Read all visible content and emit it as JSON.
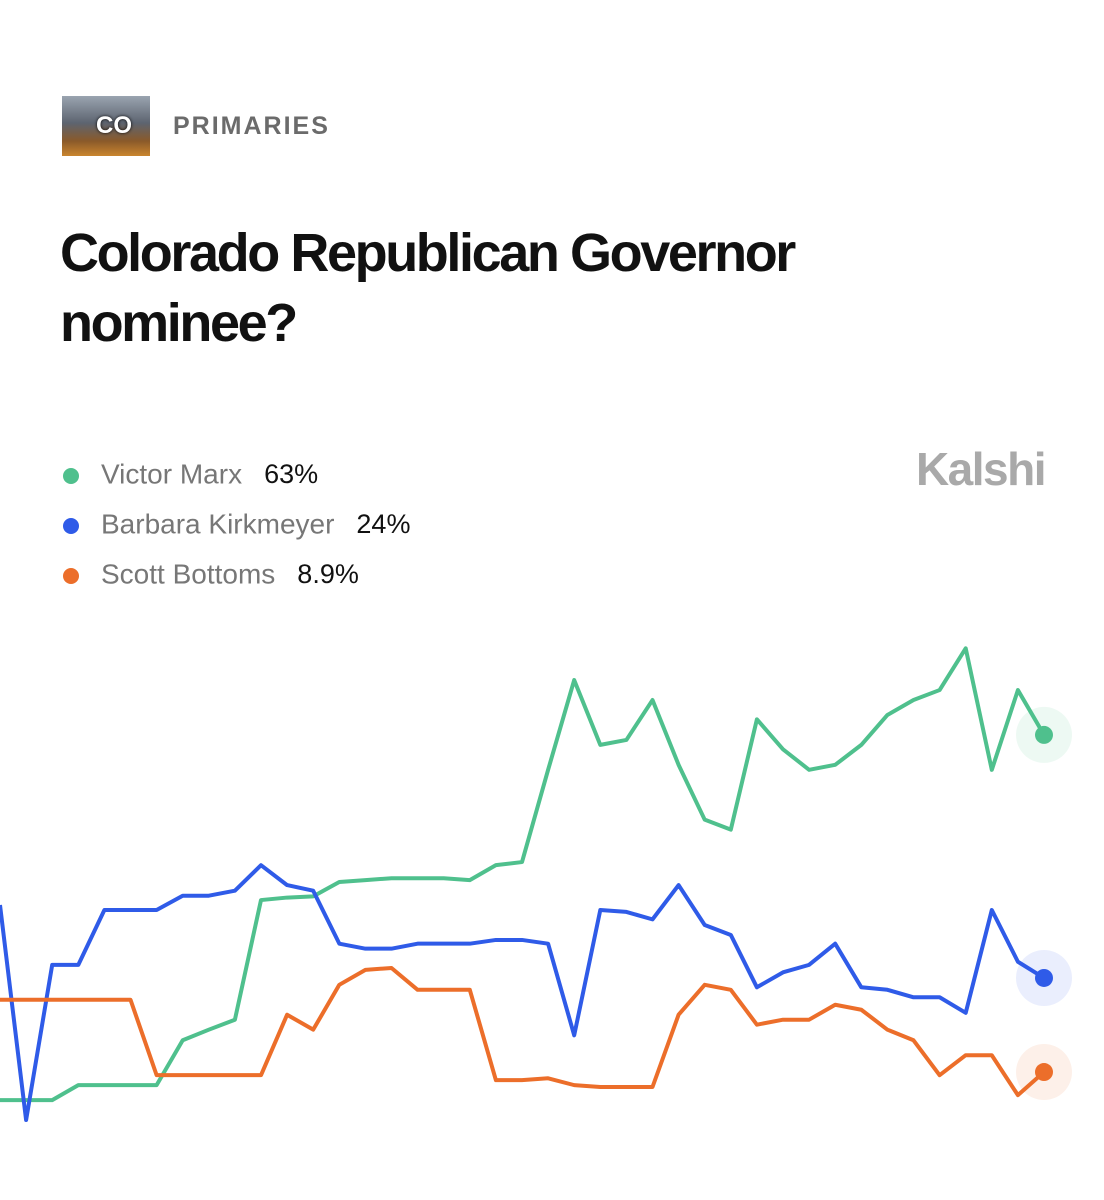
{
  "chart_data": {
    "type": "line",
    "category": "CO",
    "kicker": "PRIMARIES",
    "title": "Colorado Republican Governor nominee?",
    "brand": "Kalshi",
    "ylim": [
      0,
      80
    ],
    "series": [
      {
        "name": "Victor Marx",
        "color": "#4fc08d",
        "current_label": "63%",
        "values": [
          4.4,
          4.4,
          4.4,
          6.8,
          6.8,
          6.8,
          6.8,
          14.0,
          15.7,
          17.3,
          36.5,
          36.9,
          37.1,
          39.4,
          39.7,
          40.0,
          40.0,
          40.0,
          39.7,
          42.1,
          42.6,
          57.4,
          71.8,
          61.4,
          62.2,
          68.6,
          58.2,
          49.4,
          47.8,
          65.5,
          60.7,
          57.4,
          58.2,
          61.4,
          66.2,
          68.6,
          70.2,
          76.9,
          57.4,
          70.2,
          63
        ]
      },
      {
        "name": "Barbara Kirkmeyer",
        "color": "#2f5be8",
        "current_label": "24%",
        "values": [
          35.7,
          1.2,
          26.1,
          26.1,
          34.9,
          34.9,
          34.9,
          37.2,
          37.2,
          38.0,
          42.1,
          38.9,
          38.0,
          29.5,
          28.7,
          28.7,
          29.5,
          29.5,
          29.5,
          30.1,
          30.1,
          29.5,
          14.8,
          34.9,
          34.6,
          33.4,
          38.9,
          32.5,
          30.9,
          22.5,
          24.9,
          26.1,
          29.5,
          22.5,
          22.1,
          20.9,
          20.9,
          18.4,
          34.9,
          26.6,
          24
        ]
      },
      {
        "name": "Scott Bottoms",
        "color": "#ec6e2a",
        "current_label": "8.9%",
        "values": [
          20.5,
          20.5,
          20.5,
          20.5,
          20.5,
          20.5,
          8.4,
          8.4,
          8.4,
          8.4,
          8.4,
          18.1,
          15.7,
          22.9,
          25.3,
          25.6,
          22.1,
          22.1,
          22.1,
          7.6,
          7.6,
          7.9,
          6.8,
          6.5,
          6.5,
          6.5,
          18.1,
          22.9,
          22.1,
          16.5,
          17.3,
          17.3,
          19.7,
          18.9,
          15.7,
          14.0,
          8.4,
          11.6,
          11.6,
          5.2,
          8.9
        ]
      }
    ]
  }
}
